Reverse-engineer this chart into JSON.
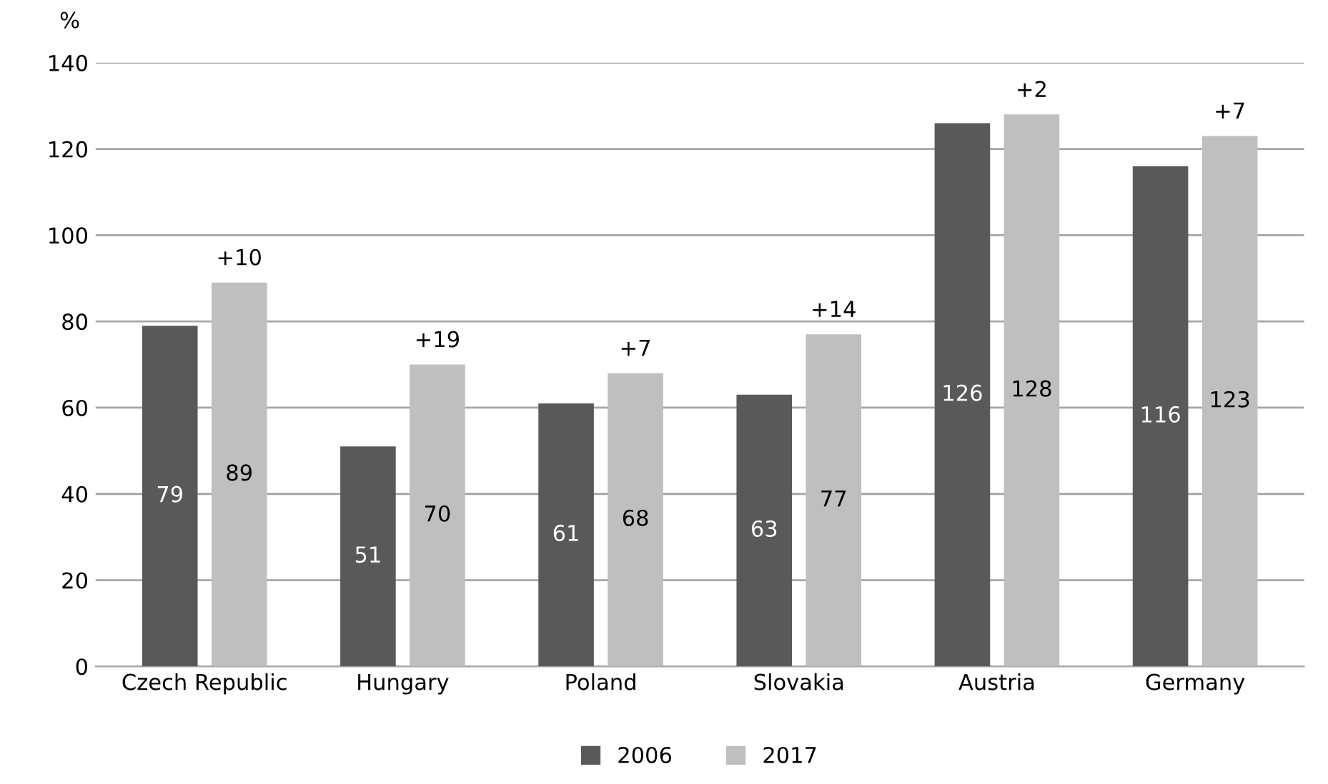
{
  "chart_data": {
    "type": "bar",
    "ylabel": "%",
    "categories": [
      "Czech Republic",
      "Hungary",
      "Poland",
      "Slovakia",
      "Austria",
      "Germany"
    ],
    "series": [
      {
        "name": "2006",
        "color": "#595959",
        "values": [
          79,
          51,
          61,
          63,
          126,
          116
        ]
      },
      {
        "name": "2017",
        "color": "#bfbfbf",
        "values": [
          89,
          70,
          68,
          77,
          128,
          123
        ]
      }
    ],
    "ylim": [
      0,
      140
    ],
    "yticks": [
      0,
      20,
      40,
      60,
      80,
      100,
      120,
      140
    ],
    "grid": "y",
    "legend": "bottom",
    "data_labels": true,
    "annotations": [
      "+10",
      "+19",
      "+7",
      "+14",
      "+2",
      "+7"
    ]
  }
}
